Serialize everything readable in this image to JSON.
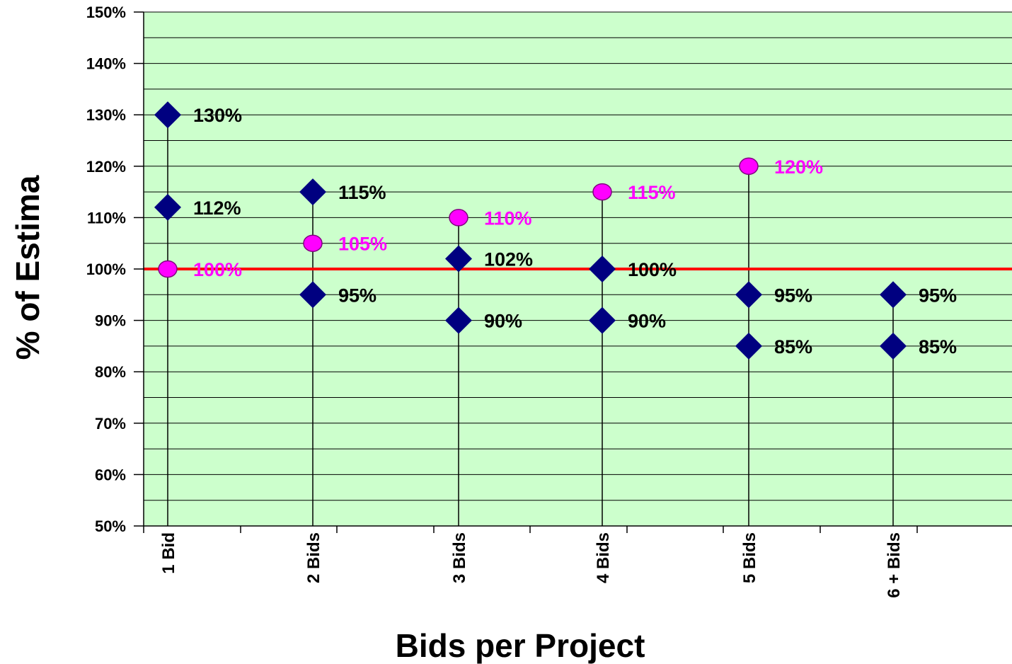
{
  "chart_data": {
    "type": "scatter",
    "title": "",
    "xlabel": "Bids per Project",
    "ylabel": "% of Estima",
    "categories": [
      "1 Bid",
      "2 Bids",
      "3 Bids",
      "4  Bids",
      "5 Bids",
      "6 + Bids"
    ],
    "ylim": [
      50,
      150
    ],
    "y_ticks": [
      "50%",
      "60%",
      "70%",
      "80%",
      "90%",
      "100%",
      "110%",
      "120%",
      "130%",
      "140%",
      "150%"
    ],
    "grid": true,
    "reference_line": {
      "value": 100,
      "color": "#ff0000"
    },
    "series": [
      {
        "marker": "diamond",
        "color": "#000080",
        "label_color": "#000000",
        "points": [
          {
            "category": "1 Bid",
            "values": [
              130,
              112
            ],
            "labels": [
              "130%",
              "112%"
            ]
          },
          {
            "category": "2 Bids",
            "values": [
              115,
              95
            ],
            "labels": [
              "115%",
              "95%"
            ]
          },
          {
            "category": "3 Bids",
            "values": [
              102,
              90
            ],
            "labels": [
              "102%",
              "90%"
            ]
          },
          {
            "category": "4  Bids",
            "values": [
              100,
              90
            ],
            "labels": [
              "100%",
              "90%"
            ]
          },
          {
            "category": "5 Bids",
            "values": [
              95,
              85
            ],
            "labels": [
              "95%",
              "85%"
            ]
          },
          {
            "category": "6 + Bids",
            "values": [
              95,
              85
            ],
            "labels": [
              "95%",
              "85%"
            ]
          }
        ]
      },
      {
        "marker": "circle",
        "color": "#ff00ff",
        "label_color": "#ff00ff",
        "points": [
          {
            "category": "1 Bid",
            "values": [
              100
            ],
            "labels": [
              "100%"
            ]
          },
          {
            "category": "2 Bids",
            "values": [
              105
            ],
            "labels": [
              "105%"
            ]
          },
          {
            "category": "3 Bids",
            "values": [
              110
            ],
            "labels": [
              "110%"
            ]
          },
          {
            "category": "4  Bids",
            "values": [
              115
            ],
            "labels": [
              "115%"
            ]
          },
          {
            "category": "5 Bids",
            "values": [
              120
            ],
            "labels": [
              "120%"
            ]
          }
        ]
      }
    ],
    "stems": [
      {
        "category": "1 Bid",
        "range": [
          50,
          130
        ]
      },
      {
        "category": "2 Bids",
        "range": [
          50,
          115
        ]
      },
      {
        "category": "3 Bids",
        "range": [
          50,
          110
        ]
      },
      {
        "category": "4  Bids",
        "range": [
          50,
          115
        ]
      },
      {
        "category": "5 Bids",
        "range": [
          50,
          120
        ]
      },
      {
        "category": "6 + Bids",
        "range": [
          50,
          95
        ]
      }
    ],
    "colors": {
      "plot_background": "#ccffcc",
      "gridline": "#000000",
      "stem": "#000000"
    }
  }
}
